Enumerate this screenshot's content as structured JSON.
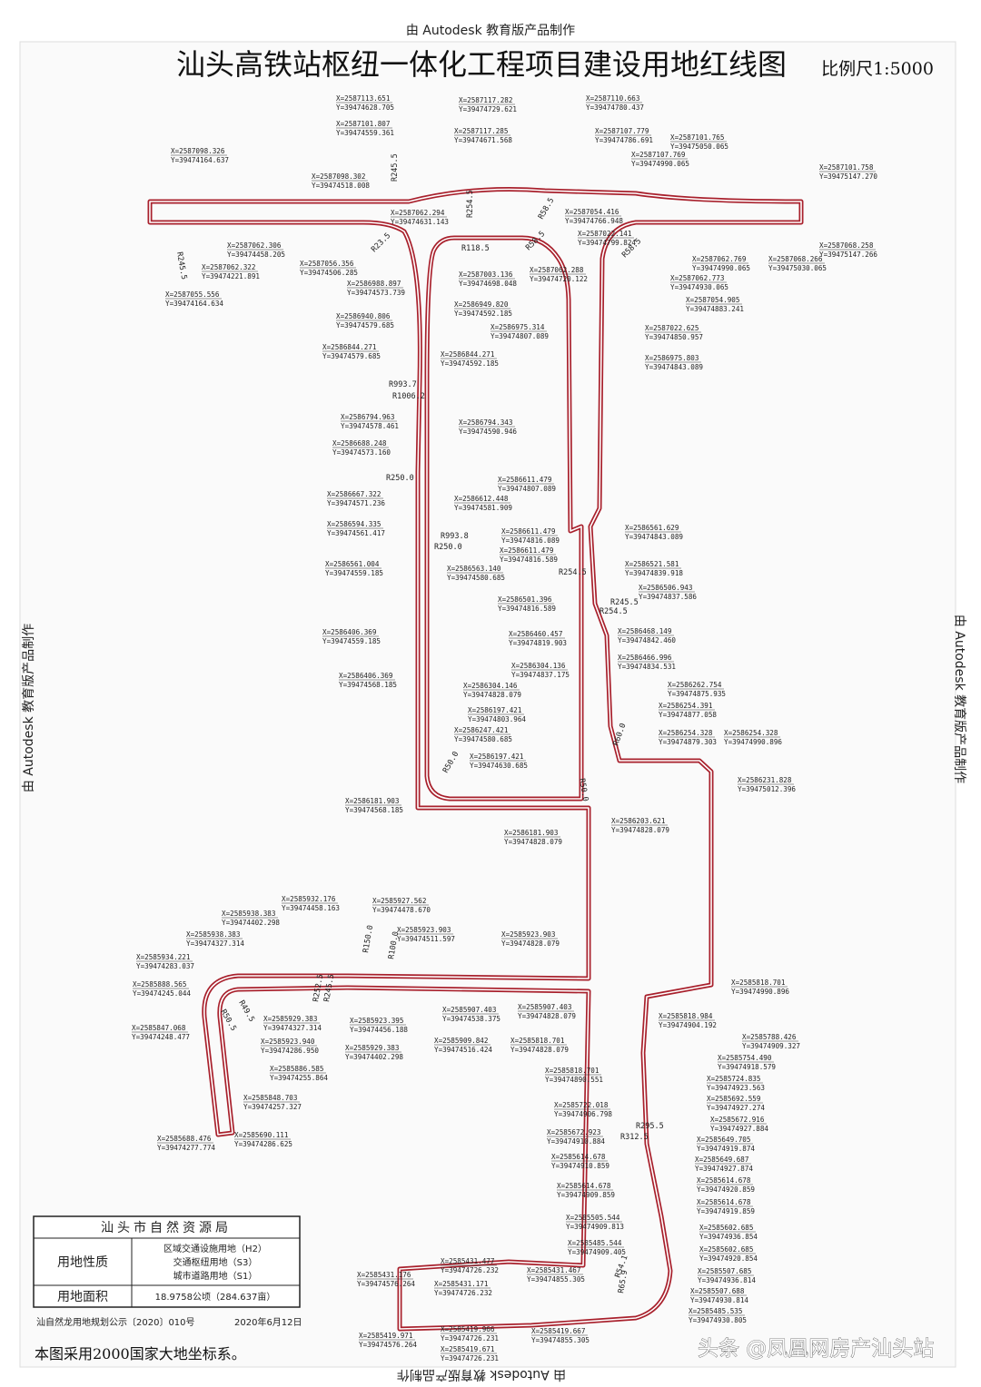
{
  "header": {
    "watermark_top": "由 Autodesk 教育版产品制作",
    "title": "汕头高铁站枢纽一体化工程项目建设用地红线图",
    "scale": "比例尺1:5000"
  },
  "side_labels": {
    "left": "由 Autodesk 教育版产品制作",
    "right": "由 Autodesk 教育版产品制作",
    "bottom": "由 Autodesk 教育版产品制作"
  },
  "coordinates": [
    {
      "x": "X=2587113.651",
      "y": "Y=39474628.705"
    },
    {
      "x": "X=2587117.282",
      "y": "Y=39474729.621"
    },
    {
      "x": "X=2587110.663",
      "y": "Y=39474780.437"
    },
    {
      "x": "X=2587101.807",
      "y": "Y=39474559.361"
    },
    {
      "x": "X=2587117.285",
      "y": "Y=39474671.568"
    },
    {
      "x": "X=2587107.779",
      "y": "Y=39474786.691"
    },
    {
      "x": "X=2587101.765",
      "y": "Y=39475050.065"
    },
    {
      "x": "X=2587098.326",
      "y": "Y=39474164.637"
    },
    {
      "x": "X=2587107.769",
      "y": "Y=39474990.065"
    },
    {
      "x": "X=2587101.758",
      "y": "Y=39475147.270"
    },
    {
      "x": "X=2587098.302",
      "y": "Y=39474518.008"
    },
    {
      "x": "X=2587062.294",
      "y": "Y=39474631.143"
    },
    {
      "x": "X=2587054.416",
      "y": "Y=39474766.948"
    },
    {
      "x": "X=2587022.141",
      "y": "Y=39474799.824"
    },
    {
      "x": "X=2587062.306",
      "y": "Y=39474458.205"
    },
    {
      "x": "X=2587056.356",
      "y": "Y=39474506.285"
    },
    {
      "x": "X=2587062.322",
      "y": "Y=39474221.891"
    },
    {
      "x": "X=2587062.769",
      "y": "Y=39474990.065"
    },
    {
      "x": "X=2587068.266",
      "y": "Y=39475030.065"
    },
    {
      "x": "X=2587068.258",
      "y": "Y=39475147.266"
    },
    {
      "x": "X=2587003.136",
      "y": "Y=39474698.048"
    },
    {
      "x": "X=2587062.288",
      "y": "Y=39474720.122"
    },
    {
      "x": "X=2586988.897",
      "y": "Y=39474573.739"
    },
    {
      "x": "X=2587062.773",
      "y": "Y=39474930.065"
    },
    {
      "x": "X=2587055.556",
      "y": "Y=39474164.634"
    },
    {
      "x": "X=2587054.905",
      "y": "Y=39474883.241"
    },
    {
      "x": "X=2586949.820",
      "y": "Y=39474592.185"
    },
    {
      "x": "X=2586940.806",
      "y": "Y=39474579.685"
    },
    {
      "x": "X=2586975.314",
      "y": "Y=39474807.089"
    },
    {
      "x": "X=2587022.625",
      "y": "Y=39474850.957"
    },
    {
      "x": "X=2586844.271",
      "y": "Y=39474579.685"
    },
    {
      "x": "X=2586844.271",
      "y": "Y=39474592.185"
    },
    {
      "x": "X=2586975.803",
      "y": "Y=39474843.089"
    },
    {
      "x": "X=2586794.963",
      "y": "Y=39474578.461"
    },
    {
      "x": "X=2586794.343",
      "y": "Y=39474590.946"
    },
    {
      "x": "X=2586688.248",
      "y": "Y=39474573.160"
    },
    {
      "x": "X=2586611.479",
      "y": "Y=39474807.089"
    },
    {
      "x": "X=2586667.322",
      "y": "Y=39474571.236"
    },
    {
      "x": "X=2586612.448",
      "y": "Y=39474581.909"
    },
    {
      "x": "X=2586594.335",
      "y": "Y=39474561.417"
    },
    {
      "x": "X=2586611.479",
      "y": "Y=39474816.089"
    },
    {
      "x": "X=2586611.479",
      "y": "Y=39474816.589"
    },
    {
      "x": "X=2586561.629",
      "y": "Y=39474843.089"
    },
    {
      "x": "X=2586561.004",
      "y": "Y=39474559.185"
    },
    {
      "x": "X=2586563.140",
      "y": "Y=39474580.685"
    },
    {
      "x": "X=2586521.581",
      "y": "Y=39474839.918"
    },
    {
      "x": "X=2586506.943",
      "y": "Y=39474837.586"
    },
    {
      "x": "X=2586501.396",
      "y": "Y=39474816.589"
    },
    {
      "x": "X=2586406.369",
      "y": "Y=39474559.185"
    },
    {
      "x": "X=2586468.149",
      "y": "Y=39474842.460"
    },
    {
      "x": "X=2586460.457",
      "y": "Y=39474819.903"
    },
    {
      "x": "X=2586466.996",
      "y": "Y=39474834.531"
    },
    {
      "x": "X=2586304.136",
      "y": "Y=39474837.175"
    },
    {
      "x": "X=2586406.369",
      "y": "Y=39474568.185"
    },
    {
      "x": "X=2586304.146",
      "y": "Y=39474828.079"
    },
    {
      "x": "X=2586262.754",
      "y": "Y=39474875.935"
    },
    {
      "x": "X=2586254.391",
      "y": "Y=39474877.058"
    },
    {
      "x": "X=2586197.421",
      "y": "Y=39474803.964"
    },
    {
      "x": "X=2586247.421",
      "y": "Y=39474580.685"
    },
    {
      "x": "X=2586254.328",
      "y": "Y=39474879.303"
    },
    {
      "x": "X=2586254.328",
      "y": "Y=39474990.896"
    },
    {
      "x": "X=2586197.421",
      "y": "Y=39474630.685"
    },
    {
      "x": "X=2586231.828",
      "y": "Y=39475012.396"
    },
    {
      "x": "X=2586181.903",
      "y": "Y=39474568.185"
    },
    {
      "x": "X=2586203.621",
      "y": "Y=39474828.079"
    },
    {
      "x": "X=2586181.903",
      "y": "Y=39474828.079"
    },
    {
      "x": "X=2585932.176",
      "y": "Y=39474458.163"
    },
    {
      "x": "X=2585927.562",
      "y": "Y=39474478.670"
    },
    {
      "x": "X=2585938.383",
      "y": "Y=39474402.298"
    },
    {
      "x": "X=2585938.383",
      "y": "Y=39474327.314"
    },
    {
      "x": "X=2585923.903",
      "y": "Y=39474511.597"
    },
    {
      "x": "X=2585923.903",
      "y": "Y=39474828.079"
    },
    {
      "x": "X=2585934.221",
      "y": "Y=39474283.037"
    },
    {
      "x": "X=2585888.565",
      "y": "Y=39474245.044"
    },
    {
      "x": "X=2585818.701",
      "y": "Y=39474990.896"
    },
    {
      "x": "X=2585907.403",
      "y": "Y=39474538.375"
    },
    {
      "x": "X=2585907.403",
      "y": "Y=39474828.079"
    },
    {
      "x": "X=2585929.383",
      "y": "Y=39474327.314"
    },
    {
      "x": "X=2585923.395",
      "y": "Y=39474456.188"
    },
    {
      "x": "X=2585818.984",
      "y": "Y=39474904.192"
    },
    {
      "x": "X=2585847.068",
      "y": "Y=39474248.477"
    },
    {
      "x": "X=2585923.940",
      "y": "Y=39474286.950"
    },
    {
      "x": "X=2585909.842",
      "y": "Y=39474516.424"
    },
    {
      "x": "X=2585818.701",
      "y": "Y=39474828.079"
    },
    {
      "x": "X=2585929.383",
      "y": "Y=39474402.298"
    },
    {
      "x": "X=2585818.701",
      "y": "Y=39474890.551"
    },
    {
      "x": "X=2585886.585",
      "y": "Y=39474255.864"
    },
    {
      "x": "X=2585848.703",
      "y": "Y=39474257.327"
    },
    {
      "x": "X=2585722.018",
      "y": "Y=39474906.798"
    },
    {
      "x": "X=2585672.923",
      "y": "Y=39474910.884"
    },
    {
      "x": "X=2585688.476",
      "y": "Y=39474277.774"
    },
    {
      "x": "X=2585690.111",
      "y": "Y=39474286.625"
    },
    {
      "x": "X=2585614.678",
      "y": "Y=39474910.859"
    },
    {
      "x": "X=2585614.678",
      "y": "Y=39474909.859"
    },
    {
      "x": "X=2585505.544",
      "y": "Y=39474909.813"
    },
    {
      "x": "X=2585485.544",
      "y": "Y=39474909.405"
    },
    {
      "x": "X=2585431.477",
      "y": "Y=39474726.232"
    },
    {
      "x": "X=2585431.176",
      "y": "Y=39474576.264"
    },
    {
      "x": "X=2585431.467",
      "y": "Y=39474855.305"
    },
    {
      "x": "X=2585431.171",
      "y": "Y=39474726.232"
    },
    {
      "x": "X=2585419.971",
      "y": "Y=39474576.264"
    },
    {
      "x": "X=2585419.966",
      "y": "Y=39474726.231"
    },
    {
      "x": "X=2585419.671",
      "y": "Y=39474726.231"
    },
    {
      "x": "X=2585419.667",
      "y": "Y=39474855.305"
    },
    {
      "x": "X=2585788.426",
      "y": "Y=39474909.327"
    },
    {
      "x": "X=2585754.490",
      "y": "Y=39474918.579"
    },
    {
      "x": "X=2585724.835",
      "y": "Y=39474923.563"
    },
    {
      "x": "X=2585692.559",
      "y": "Y=39474927.274"
    },
    {
      "x": "X=2585672.916",
      "y": "Y=39474927.884"
    },
    {
      "x": "X=2585649.705",
      "y": "Y=39474919.874"
    },
    {
      "x": "X=2585649.687",
      "y": "Y=39474927.874"
    },
    {
      "x": "X=2585614.678",
      "y": "Y=39474920.859"
    },
    {
      "x": "X=2585614.678",
      "y": "Y=39474919.859"
    },
    {
      "x": "X=2585602.685",
      "y": "Y=39474936.854"
    },
    {
      "x": "X=2585602.685",
      "y": "Y=39474920.854"
    },
    {
      "x": "X=2585507.685",
      "y": "Y=39474936.814"
    },
    {
      "x": "X=2585507.688",
      "y": "Y=39474930.814"
    },
    {
      "x": "X=2585485.535",
      "y": "Y=39474930.805"
    }
  ],
  "radii": [
    "R245.5",
    "R254.5",
    "R58.5",
    "R245.5",
    "R118.5",
    "R23.5",
    "R58.5",
    "R58.5",
    "R993.7",
    "R1006.2",
    "R250.0",
    "R993.8",
    "R250.0",
    "R254.5",
    "R245.5",
    "R254.5",
    "R60.0",
    "R50.0",
    "R50.0",
    "R150.0",
    "R100.0",
    "R252.5",
    "R245.5",
    "R49.5",
    "R50.5",
    "R295.5",
    "R312.5",
    "R54.1",
    "R65.9"
  ],
  "legend_table": {
    "authority": "汕头市自然资源局",
    "rows": [
      {
        "label": "用地性质",
        "values": [
          "区域交通设施用地（H2）",
          "交通枢纽用地（S3）",
          "城市道路用地（S1）"
        ]
      },
      {
        "label": "用地面积",
        "values": [
          "18.9758公顷（284.637亩）"
        ]
      }
    ]
  },
  "approval_no": "汕自然龙用地规划公示〔2020〕010号",
  "date": "2020年6月12日",
  "footnote": "本图采用2000国家大地坐标系。",
  "source_badge": "头条 @凤凰网房产汕头站"
}
